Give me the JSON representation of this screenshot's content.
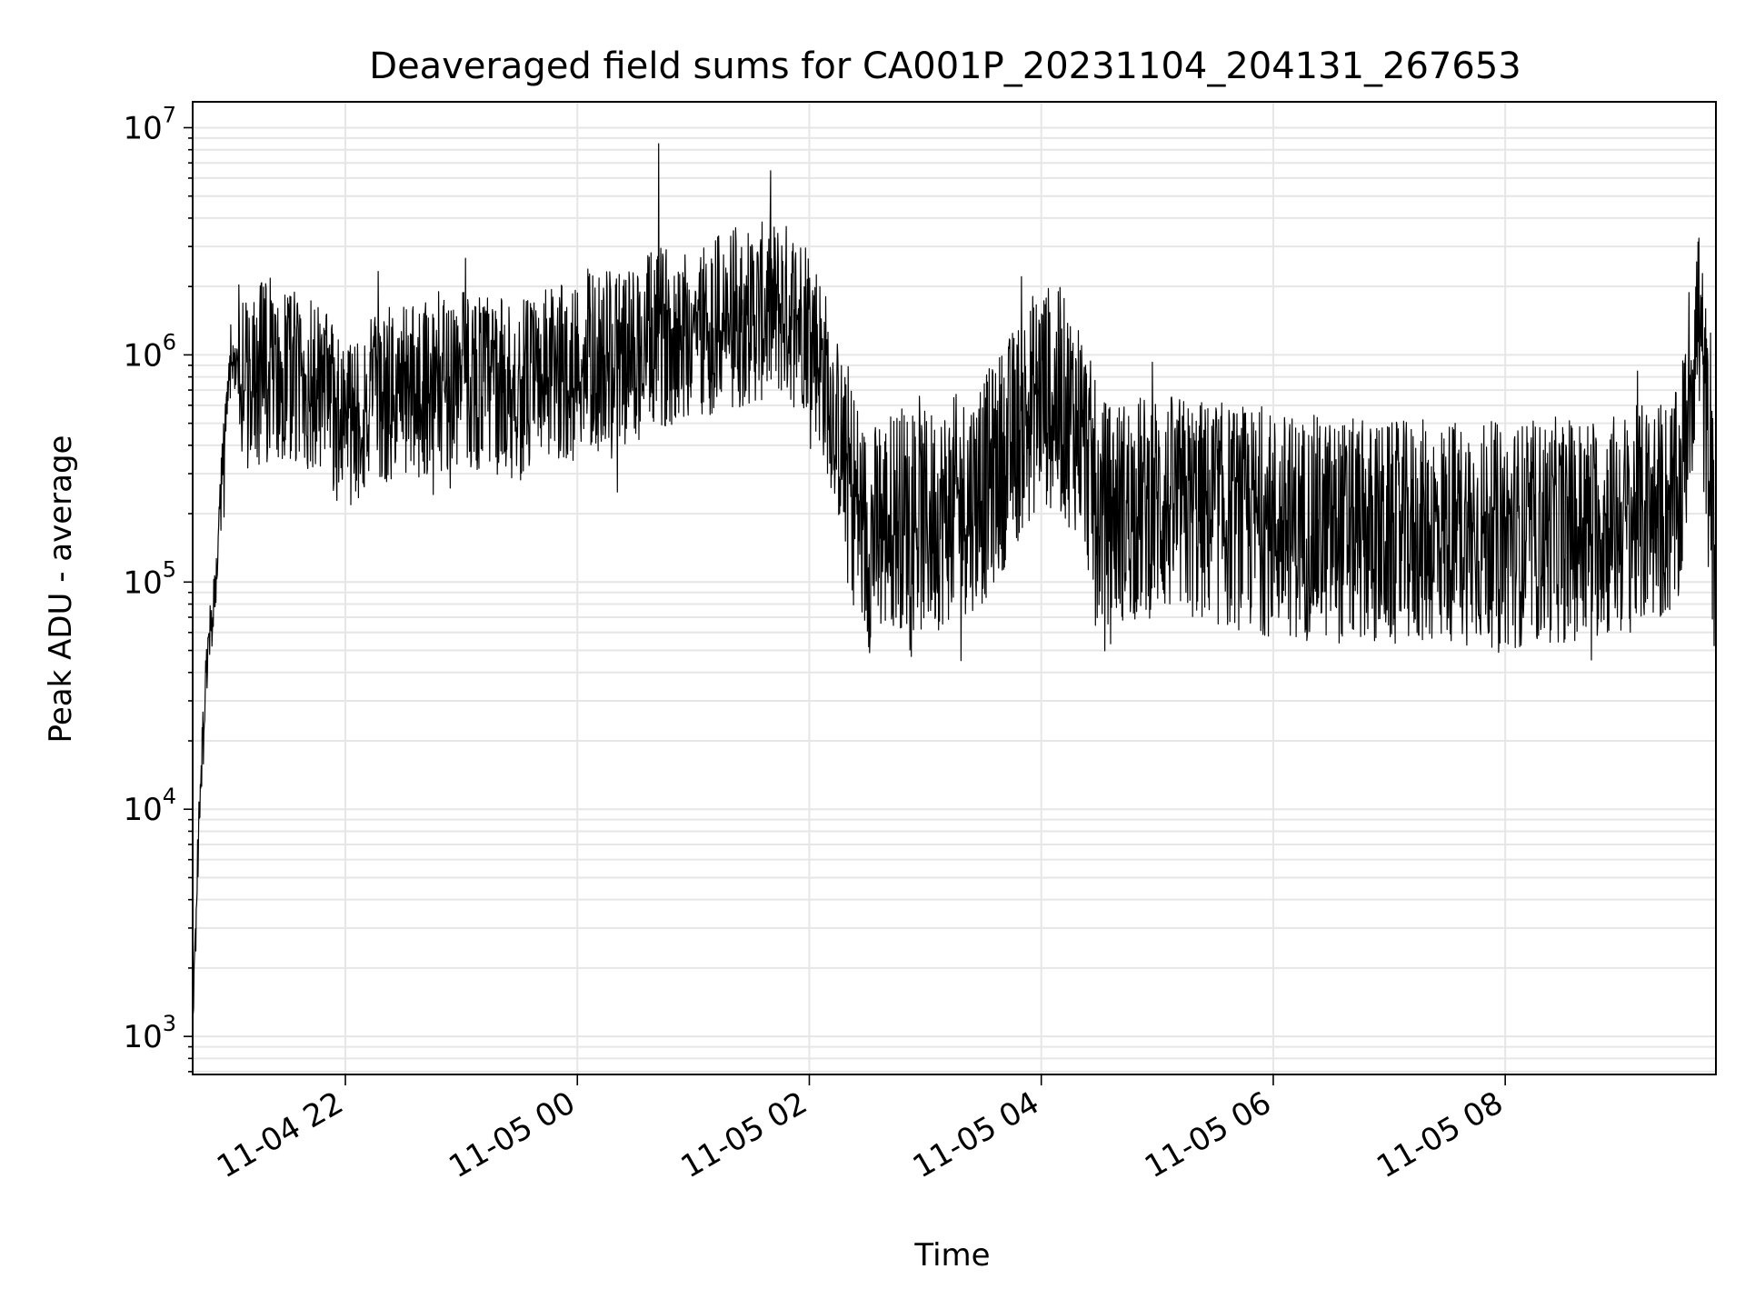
{
  "chart_data": {
    "type": "line",
    "title": "Deaveraged field sums for CA001P_20231104_204131_267653",
    "xlabel": "Time",
    "ylabel": "Peak ADU - average",
    "yscale": "log",
    "ylim": [
      680,
      13000000
    ],
    "xlim": [
      "2023-11-04 20:41",
      "2023-11-05 09:49"
    ],
    "grid": true,
    "line_color": "#000000",
    "grid_color": "#e6e6e6",
    "x_ticks": [
      {
        "label": "11-04 22",
        "value": "2023-11-04 22:00"
      },
      {
        "label": "11-05 00",
        "value": "2023-11-05 00:00"
      },
      {
        "label": "11-05 02",
        "value": "2023-11-05 02:00"
      },
      {
        "label": "11-05 04",
        "value": "2023-11-05 04:00"
      },
      {
        "label": "11-05 06",
        "value": "2023-11-05 06:00"
      },
      {
        "label": "11-05 08",
        "value": "2023-11-05 08:00"
      }
    ],
    "y_ticks": [
      {
        "base": "10",
        "exp": "3",
        "value": 1000
      },
      {
        "base": "10",
        "exp": "4",
        "value": 10000
      },
      {
        "base": "10",
        "exp": "5",
        "value": 100000
      },
      {
        "base": "10",
        "exp": "6",
        "value": 1000000
      },
      {
        "base": "10",
        "exp": "7",
        "value": 10000000
      }
    ],
    "series": [
      {
        "x": [
          "2023-11-04 20:41",
          "2023-11-04 20:44",
          "2023-11-04 20:47",
          "2023-11-04 20:50",
          "2023-11-04 20:53",
          "2023-11-04 20:56",
          "2023-11-04 21:00",
          "2023-11-04 21:05",
          "2023-11-04 21:10",
          "2023-11-04 21:20",
          "2023-11-04 21:30",
          "2023-11-04 21:45",
          "2023-11-04 22:00",
          "2023-11-04 22:15",
          "2023-11-04 22:30",
          "2023-11-04 23:00",
          "2023-11-04 23:30",
          "2023-11-05 00:00",
          "2023-11-05 00:30",
          "2023-11-05 00:42",
          "2023-11-05 01:00",
          "2023-11-05 01:30",
          "2023-11-05 01:45",
          "2023-11-05 02:00",
          "2023-11-05 02:10",
          "2023-11-05 02:20",
          "2023-11-05 02:30",
          "2023-11-05 02:45",
          "2023-11-05 03:00",
          "2023-11-05 03:30",
          "2023-11-05 04:00",
          "2023-11-05 04:20",
          "2023-11-05 04:30",
          "2023-11-05 05:00",
          "2023-11-05 05:30",
          "2023-11-05 06:00",
          "2023-11-05 06:30",
          "2023-11-05 07:00",
          "2023-11-05 07:30",
          "2023-11-05 08:00",
          "2023-11-05 08:30",
          "2023-11-05 09:00",
          "2023-11-05 09:30",
          "2023-11-05 09:36",
          "2023-11-05 09:40",
          "2023-11-05 09:44",
          "2023-11-05 09:49"
        ],
        "y": [
          1000,
          8000,
          30000,
          60000,
          100000,
          300000,
          800000,
          900000,
          700000,
          900000,
          800000,
          700000,
          500000,
          600000,
          700000,
          800000,
          700000,
          900000,
          1000000,
          1200000,
          1300000,
          1500000,
          1600000,
          1400000,
          700000,
          300000,
          150000,
          200000,
          180000,
          250000,
          700000,
          500000,
          200000,
          220000,
          200000,
          180000,
          170000,
          160000,
          170000,
          160000,
          170000,
          180000,
          220000,
          800000,
          1500000,
          500000,
          110000
        ]
      },
      {
        "name": "",
        "x": [
          "2023-11-05 00:42"
        ],
        "y": [
          8500000
        ]
      }
    ]
  }
}
